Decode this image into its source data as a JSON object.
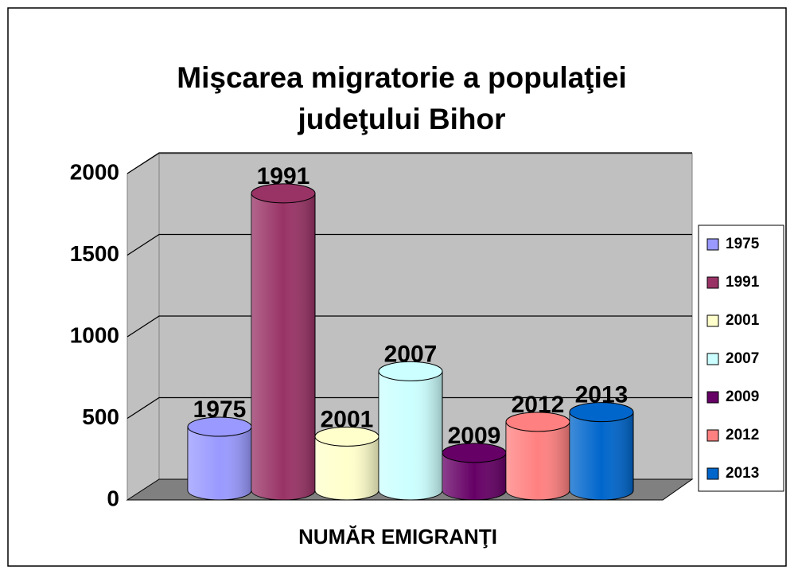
{
  "chart_data": {
    "type": "bar3d",
    "title": [
      "Mişcarea migratorie a populaţiei",
      "judeţului Bihor"
    ],
    "xlabel": "NUMĂR EMIGRANŢI",
    "categories": [
      "NUMĂR EMIGRANŢI"
    ],
    "series": [
      {
        "name": "1975",
        "color": "#9999ff",
        "values": [
          390
        ]
      },
      {
        "name": "1991",
        "color": "#993366",
        "values": [
          1820
        ]
      },
      {
        "name": "2001",
        "color": "#ffffcc",
        "values": [
          330
        ]
      },
      {
        "name": "2007",
        "color": "#ccffff",
        "values": [
          730
        ]
      },
      {
        "name": "2009",
        "color": "#660066",
        "values": [
          230
        ]
      },
      {
        "name": "2012",
        "color": "#ff8080",
        "values": [
          420
        ]
      },
      {
        "name": "2013",
        "color": "#0066cc",
        "values": [
          480
        ]
      }
    ],
    "ylim": [
      0,
      2000
    ],
    "yticks": [
      0,
      500,
      1000,
      1500,
      2000
    ],
    "grid": true,
    "legend": "right",
    "data_labels": "series_name"
  }
}
